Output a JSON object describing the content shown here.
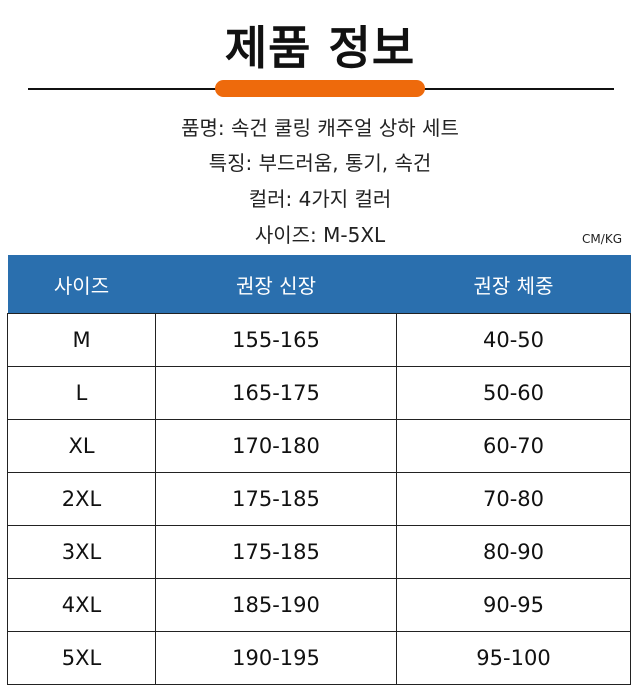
{
  "title": "제품 정보",
  "colors": {
    "accent": "#ee6a0c",
    "header": "#2a6fae"
  },
  "info": [
    "품명: 속건 쿨링 캐주얼 상하 세트",
    "특징: 부드러움, 통기, 속건",
    "컬러: 4가지 컬러",
    "사이즈: M-5XL"
  ],
  "unit": "CM/KG",
  "table": {
    "headers": [
      "사이즈",
      "권장 신장",
      "권장 체중"
    ],
    "rows": [
      [
        "M",
        "155-165",
        "40-50"
      ],
      [
        "L",
        "165-175",
        "50-60"
      ],
      [
        "XL",
        "170-180",
        "60-70"
      ],
      [
        "2XL",
        "175-185",
        "70-80"
      ],
      [
        "3XL",
        "175-185",
        "80-90"
      ],
      [
        "4XL",
        "185-190",
        "90-95"
      ],
      [
        "5XL",
        "190-195",
        "95-100"
      ]
    ]
  }
}
